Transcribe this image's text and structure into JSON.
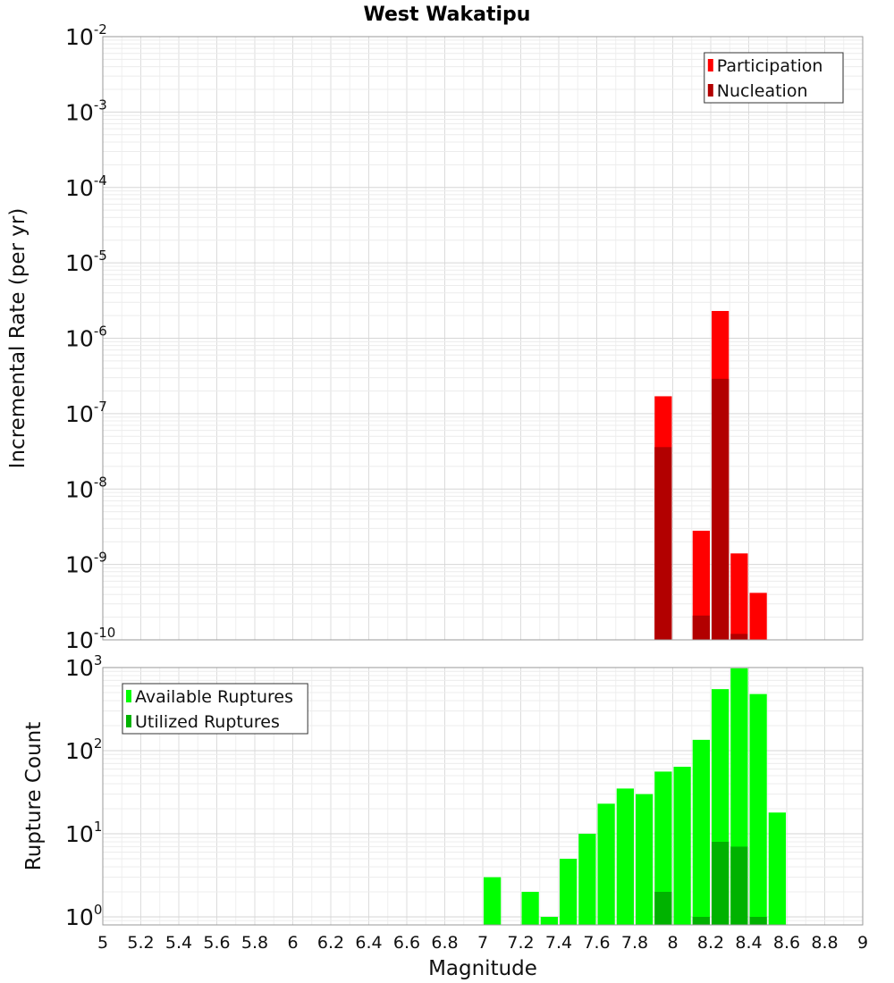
{
  "chart_data": [
    {
      "type": "bar",
      "title": "West Wakatipu",
      "xlabel": "Magnitude",
      "ylabel": "Incremental Rate (per yr)",
      "yscale": "log",
      "ylim": [
        1e-10,
        0.01
      ],
      "xlim": [
        5,
        9
      ],
      "bin_width": 0.1,
      "grid": true,
      "legend_position": "top-right",
      "series": [
        {
          "name": "Participation",
          "color": "#ff0000",
          "points": [
            {
              "x": 7.95,
              "y": 1.7e-07
            },
            {
              "x": 8.15,
              "y": 2.8e-09
            },
            {
              "x": 8.25,
              "y": 2.3e-06
            },
            {
              "x": 8.35,
              "y": 1.4e-09
            },
            {
              "x": 8.45,
              "y": 4.2e-10
            }
          ]
        },
        {
          "name": "Nucleation",
          "color": "#b20000",
          "points": [
            {
              "x": 7.95,
              "y": 3.6e-08
            },
            {
              "x": 8.15,
              "y": 2.1e-10
            },
            {
              "x": 8.25,
              "y": 2.9e-07
            },
            {
              "x": 8.35,
              "y": 1.2e-10
            }
          ]
        }
      ]
    },
    {
      "type": "bar",
      "xlabel": "Magnitude",
      "ylabel": "Rupture Count",
      "yscale": "log",
      "ylim": [
        0.8,
        1000
      ],
      "xlim": [
        5,
        9
      ],
      "bin_width": 0.1,
      "grid": true,
      "legend_position": "top-left",
      "x_ticks": [
        "5",
        "5.2",
        "5.4",
        "5.6",
        "5.8",
        "6",
        "6.2",
        "6.4",
        "6.6",
        "6.8",
        "7",
        "7.2",
        "7.4",
        "7.6",
        "7.8",
        "8",
        "8.2",
        "8.4",
        "8.6",
        "8.8",
        "9"
      ],
      "series": [
        {
          "name": "Available Ruptures",
          "color": "#00ff00",
          "points": [
            {
              "x": 7.05,
              "y": 3
            },
            {
              "x": 7.25,
              "y": 2
            },
            {
              "x": 7.35,
              "y": 1
            },
            {
              "x": 7.45,
              "y": 5
            },
            {
              "x": 7.55,
              "y": 10
            },
            {
              "x": 7.65,
              "y": 23
            },
            {
              "x": 7.75,
              "y": 35
            },
            {
              "x": 7.85,
              "y": 30
            },
            {
              "x": 7.95,
              "y": 56
            },
            {
              "x": 8.05,
              "y": 64
            },
            {
              "x": 8.15,
              "y": 135
            },
            {
              "x": 8.25,
              "y": 550
            },
            {
              "x": 8.35,
              "y": 980
            },
            {
              "x": 8.45,
              "y": 480
            },
            {
              "x": 8.55,
              "y": 18
            }
          ]
        },
        {
          "name": "Utilized Ruptures",
          "color": "#00b200",
          "points": [
            {
              "x": 7.95,
              "y": 2
            },
            {
              "x": 8.15,
              "y": 1
            },
            {
              "x": 8.25,
              "y": 8
            },
            {
              "x": 8.35,
              "y": 7
            },
            {
              "x": 8.45,
              "y": 1
            }
          ]
        }
      ]
    }
  ]
}
